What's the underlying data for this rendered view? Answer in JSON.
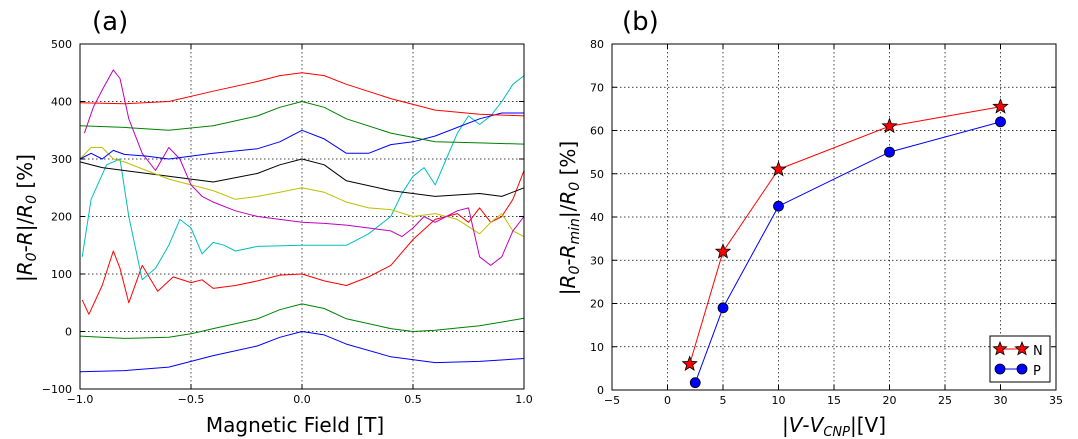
{
  "chart_data": [
    {
      "type": "line",
      "panel_label": "(a)",
      "xlabel": "Magnetic Field [T]",
      "ylabel": "|R₀-R|/R₀ [%]",
      "xlim": [
        -1.0,
        1.0
      ],
      "ylim": [
        -100,
        500
      ],
      "xticks": [
        -1.0,
        -0.5,
        0.0,
        0.5,
        1.0
      ],
      "xtick_labels": [
        "−1.0",
        "−0.5",
        "0.0",
        "0.5",
        "1.0"
      ],
      "yticks": [
        -100,
        0,
        100,
        200,
        300,
        400,
        500
      ],
      "ytick_labels": [
        "−100",
        "0",
        "100",
        "200",
        "300",
        "400",
        "500"
      ],
      "grid": true,
      "series": [
        {
          "color": "#0000ff",
          "x": [
            -1.0,
            -0.8,
            -0.6,
            -0.4,
            -0.2,
            -0.1,
            0.0,
            0.1,
            0.2,
            0.4,
            0.6,
            0.8,
            1.0
          ],
          "y": [
            -70,
            -68,
            -62,
            -42,
            -25,
            -10,
            0,
            -6,
            -22,
            -44,
            -54,
            -52,
            -47
          ]
        },
        {
          "color": "#008000",
          "x": [
            -1.0,
            -0.8,
            -0.6,
            -0.5,
            -0.4,
            -0.2,
            -0.1,
            0.0,
            0.1,
            0.2,
            0.4,
            0.5,
            0.6,
            0.8,
            1.0
          ],
          "y": [
            -8,
            -12,
            -10,
            -4,
            5,
            22,
            38,
            48,
            40,
            22,
            5,
            0,
            2,
            10,
            23
          ]
        },
        {
          "color": "#ff0000",
          "x": [
            -0.99,
            -0.96,
            -0.9,
            -0.85,
            -0.82,
            -0.78,
            -0.72,
            -0.65,
            -0.58,
            -0.5,
            -0.45,
            -0.4,
            -0.3,
            -0.2,
            -0.1,
            0.0,
            0.1,
            0.2,
            0.3,
            0.4,
            0.5,
            0.6,
            0.7,
            0.75,
            0.8,
            0.85,
            0.9,
            0.95,
            1.0
          ],
          "y": [
            55,
            30,
            80,
            140,
            110,
            50,
            115,
            70,
            95,
            85,
            90,
            75,
            80,
            88,
            98,
            100,
            88,
            80,
            95,
            115,
            160,
            195,
            205,
            190,
            215,
            190,
            200,
            230,
            280
          ]
        },
        {
          "color": "#00bfbf",
          "x": [
            -0.99,
            -0.95,
            -0.88,
            -0.82,
            -0.78,
            -0.72,
            -0.66,
            -0.6,
            -0.55,
            -0.5,
            -0.45,
            -0.4,
            -0.35,
            -0.3,
            -0.2,
            0.0,
            0.2,
            0.3,
            0.4,
            0.45,
            0.5,
            0.55,
            0.6,
            0.65,
            0.7,
            0.75,
            0.8,
            0.85,
            0.9,
            0.95,
            1.0
          ],
          "y": [
            130,
            230,
            290,
            300,
            200,
            90,
            110,
            150,
            195,
            180,
            135,
            155,
            150,
            140,
            148,
            150,
            150,
            170,
            200,
            240,
            270,
            285,
            255,
            300,
            345,
            375,
            360,
            375,
            400,
            430,
            445
          ]
        },
        {
          "color": "#000000",
          "x": [
            -1.0,
            -0.9,
            -0.8,
            -0.6,
            -0.4,
            -0.2,
            -0.1,
            0.0,
            0.1,
            0.2,
            0.4,
            0.6,
            0.8,
            0.9,
            1.0
          ],
          "y": [
            295,
            285,
            280,
            270,
            260,
            275,
            290,
            300,
            290,
            262,
            245,
            235,
            240,
            235,
            250
          ]
        },
        {
          "color": "#bfbf00",
          "x": [
            -1.0,
            -0.95,
            -0.9,
            -0.85,
            -0.8,
            -0.7,
            -0.6,
            -0.4,
            -0.3,
            -0.2,
            -0.1,
            0.0,
            0.1,
            0.2,
            0.3,
            0.4,
            0.5,
            0.6,
            0.7,
            0.8,
            0.85,
            0.9,
            0.95,
            1.0
          ],
          "y": [
            300,
            320,
            320,
            300,
            295,
            280,
            265,
            245,
            230,
            235,
            242,
            250,
            242,
            225,
            215,
            212,
            200,
            205,
            195,
            170,
            190,
            205,
            175,
            165
          ]
        },
        {
          "color": "#bf00bf",
          "x": [
            -0.98,
            -0.94,
            -0.9,
            -0.85,
            -0.82,
            -0.78,
            -0.72,
            -0.66,
            -0.6,
            -0.55,
            -0.5,
            -0.45,
            -0.4,
            -0.3,
            -0.2,
            -0.1,
            0.0,
            0.1,
            0.2,
            0.3,
            0.4,
            0.45,
            0.5,
            0.55,
            0.6,
            0.65,
            0.7,
            0.75,
            0.8,
            0.85,
            0.9,
            0.95,
            1.0
          ],
          "y": [
            345,
            390,
            420,
            455,
            440,
            370,
            310,
            280,
            320,
            300,
            255,
            235,
            225,
            210,
            200,
            195,
            190,
            188,
            185,
            180,
            175,
            165,
            180,
            200,
            190,
            200,
            210,
            215,
            130,
            115,
            130,
            175,
            200
          ]
        },
        {
          "color": "#0000ff",
          "x": [
            -1.0,
            -0.95,
            -0.9,
            -0.85,
            -0.8,
            -0.7,
            -0.6,
            -0.4,
            -0.2,
            -0.1,
            0.0,
            0.1,
            0.2,
            0.3,
            0.4,
            0.5,
            0.6,
            0.7,
            0.8,
            0.9,
            1.0
          ],
          "y": [
            300,
            310,
            300,
            315,
            308,
            305,
            300,
            310,
            318,
            330,
            350,
            335,
            310,
            310,
            325,
            330,
            340,
            355,
            370,
            380,
            380
          ]
        },
        {
          "color": "#008000",
          "x": [
            -1.0,
            -0.8,
            -0.6,
            -0.4,
            -0.2,
            -0.1,
            0.0,
            0.1,
            0.2,
            0.4,
            0.6,
            0.8,
            1.0
          ],
          "y": [
            358,
            355,
            350,
            358,
            375,
            390,
            400,
            390,
            370,
            345,
            330,
            328,
            326
          ]
        },
        {
          "color": "#ff0000",
          "x": [
            -1.0,
            -0.8,
            -0.6,
            -0.4,
            -0.2,
            -0.1,
            0.0,
            0.1,
            0.2,
            0.4,
            0.6,
            0.8,
            1.0
          ],
          "y": [
            398,
            396,
            400,
            418,
            435,
            445,
            450,
            445,
            430,
            405,
            385,
            378,
            375
          ]
        }
      ]
    },
    {
      "type": "line",
      "panel_label": "(b)",
      "xlabel": "|V-V_CNP|[V]",
      "ylabel": "|R₀-R_min|/R₀ [%]",
      "xlim": [
        -5,
        35
      ],
      "ylim": [
        0,
        80
      ],
      "xticks": [
        -5,
        0,
        5,
        10,
        15,
        20,
        25,
        30,
        35
      ],
      "xtick_labels": [
        "−5",
        "0",
        "5",
        "10",
        "15",
        "20",
        "25",
        "30",
        "35"
      ],
      "yticks": [
        0,
        10,
        20,
        30,
        40,
        50,
        60,
        70,
        80
      ],
      "ytick_labels": [
        "0",
        "10",
        "20",
        "30",
        "40",
        "50",
        "60",
        "70",
        "80"
      ],
      "grid": true,
      "legend_position": "lower-right",
      "series": [
        {
          "name": "N",
          "color": "#ff0000",
          "marker": "star",
          "x": [
            2,
            5,
            10,
            20,
            30
          ],
          "y": [
            6,
            32,
            51,
            61,
            65.5
          ]
        },
        {
          "name": "P",
          "color": "#0000ff",
          "marker": "circle",
          "x": [
            2.5,
            5,
            10,
            20,
            30
          ],
          "y": [
            1.7,
            19,
            42.5,
            55,
            62
          ]
        }
      ]
    }
  ]
}
